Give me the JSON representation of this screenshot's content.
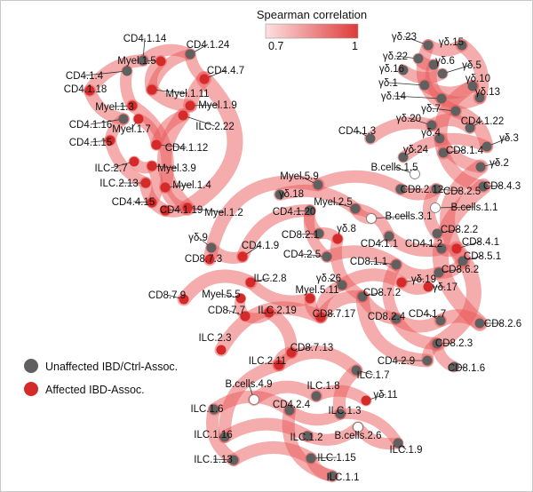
{
  "legend": {
    "correlation_title": "Spearman correlation",
    "scale_min": "0.7",
    "scale_max": "1",
    "unaffected_label": "Unaffected IBD/Ctrl-Assoc.",
    "affected_label": "Affected IBD-Assoc."
  },
  "colors": {
    "edge": "#ea5a5a",
    "unaffected_node": "#606060",
    "affected_node": "#d42a2a",
    "white_node": "#ffffff"
  },
  "nodes": [
    {
      "id": "CD4.1.14",
      "type": "unaffected"
    },
    {
      "id": "CD4.1.24",
      "type": "unaffected"
    },
    {
      "id": "Myel.1.5",
      "type": "affected"
    },
    {
      "id": "CD4.4.7",
      "type": "affected"
    },
    {
      "id": "CD4.1.4",
      "type": "unaffected"
    },
    {
      "id": "CD4.1.18",
      "type": "affected"
    },
    {
      "id": "Myel.1.11",
      "type": "affected"
    },
    {
      "id": "Myel.1.9",
      "type": "affected"
    },
    {
      "id": "Myel.1.3",
      "type": "affected"
    },
    {
      "id": "ILC.2.22",
      "type": "affected"
    },
    {
      "id": "CD4.1.16",
      "type": "unaffected"
    },
    {
      "id": "Myel.1.7",
      "type": "affected"
    },
    {
      "id": "CD4.1.12",
      "type": "affected"
    },
    {
      "id": "CD4.1.15",
      "type": "affected"
    },
    {
      "id": "ILC.2.7",
      "type": "affected"
    },
    {
      "id": "Myel.3.9",
      "type": "affected"
    },
    {
      "id": "ILC.2.13",
      "type": "affected"
    },
    {
      "id": "Myel.1.4",
      "type": "affected"
    },
    {
      "id": "CD4.4.15",
      "type": "affected"
    },
    {
      "id": "CD4.1.19",
      "type": "affected"
    },
    {
      "id": "Myel.1.2",
      "type": "affected"
    },
    {
      "id": "γδ.23",
      "type": "unaffected"
    },
    {
      "id": "γδ.15",
      "type": "unaffected"
    },
    {
      "id": "γδ.22",
      "type": "unaffected"
    },
    {
      "id": "γδ.6",
      "type": "unaffected"
    },
    {
      "id": "γδ.16",
      "type": "unaffected"
    },
    {
      "id": "γδ.5",
      "type": "unaffected"
    },
    {
      "id": "γδ.1",
      "type": "unaffected"
    },
    {
      "id": "γδ.10",
      "type": "unaffected"
    },
    {
      "id": "γδ.14",
      "type": "unaffected"
    },
    {
      "id": "γδ.13",
      "type": "unaffected"
    },
    {
      "id": "γδ.7",
      "type": "unaffected"
    },
    {
      "id": "γδ.20",
      "type": "unaffected"
    },
    {
      "id": "CD4.1.22",
      "type": "unaffected"
    },
    {
      "id": "CD4.1.3",
      "type": "unaffected"
    },
    {
      "id": "γδ.4",
      "type": "unaffected"
    },
    {
      "id": "γδ.3",
      "type": "unaffected"
    },
    {
      "id": "CD8.1.4",
      "type": "unaffected"
    },
    {
      "id": "γδ.24",
      "type": "unaffected"
    },
    {
      "id": "γδ.2",
      "type": "unaffected"
    },
    {
      "id": "B.cells.1.5",
      "type": "white"
    },
    {
      "id": "CD8.4.3",
      "type": "unaffected"
    },
    {
      "id": "Myel.5.9",
      "type": "unaffected"
    },
    {
      "id": "CD8.2.12",
      "type": "unaffected"
    },
    {
      "id": "CD8.2.5",
      "type": "unaffected"
    },
    {
      "id": "γδ.18",
      "type": "unaffected"
    },
    {
      "id": "Myel.2.5",
      "type": "unaffected"
    },
    {
      "id": "B.cells.1.1",
      "type": "white"
    },
    {
      "id": "CD4.1.20",
      "type": "unaffected"
    },
    {
      "id": "B.cells.3.1",
      "type": "white"
    },
    {
      "id": "CD8.2.1",
      "type": "unaffected"
    },
    {
      "id": "γδ.8",
      "type": "affected"
    },
    {
      "id": "CD8.2.2",
      "type": "unaffected"
    },
    {
      "id": "γδ.9",
      "type": "unaffected"
    },
    {
      "id": "CD4.1.1",
      "type": "unaffected"
    },
    {
      "id": "CD4.1.2",
      "type": "unaffected"
    },
    {
      "id": "CD8.4.1",
      "type": "affected"
    },
    {
      "id": "CD4.1.9",
      "type": "affected"
    },
    {
      "id": "CD4.2.5",
      "type": "unaffected"
    },
    {
      "id": "CD8.5.1",
      "type": "unaffected"
    },
    {
      "id": "CD8.7.3",
      "type": "affected"
    },
    {
      "id": "CD8.1.1",
      "type": "unaffected"
    },
    {
      "id": "CD8.6.2",
      "type": "unaffected"
    },
    {
      "id": "ILC.2.8",
      "type": "affected"
    },
    {
      "id": "γδ.26",
      "type": "unaffected"
    },
    {
      "id": "γδ.19",
      "type": "affected"
    },
    {
      "id": "CD8.7.9",
      "type": "affected"
    },
    {
      "id": "Myel.5.5",
      "type": "affected"
    },
    {
      "id": "Myel.5.11",
      "type": "affected"
    },
    {
      "id": "CD8.7.2",
      "type": "unaffected"
    },
    {
      "id": "γδ.17",
      "type": "affected"
    },
    {
      "id": "CD8.7.7",
      "type": "affected"
    },
    {
      "id": "ILC.2.19",
      "type": "affected"
    },
    {
      "id": "CD8.7.17",
      "type": "affected"
    },
    {
      "id": "CD8.2.4",
      "type": "unaffected"
    },
    {
      "id": "CD4.1.7",
      "type": "unaffected"
    },
    {
      "id": "CD8.2.6",
      "type": "unaffected"
    },
    {
      "id": "ILC.2.3",
      "type": "affected"
    },
    {
      "id": "CD8.7.13",
      "type": "affected"
    },
    {
      "id": "CD8.2.3",
      "type": "unaffected"
    },
    {
      "id": "ILC.2.11",
      "type": "affected"
    },
    {
      "id": "CD4.2.9",
      "type": "unaffected"
    },
    {
      "id": "CD8.1.6",
      "type": "unaffected"
    },
    {
      "id": "ILC.1.7",
      "type": "unaffected"
    },
    {
      "id": "B.cells.4.9",
      "type": "white"
    },
    {
      "id": "ILC.1.8",
      "type": "unaffected"
    },
    {
      "id": "γδ.11",
      "type": "affected"
    },
    {
      "id": "ILC.1.6",
      "type": "unaffected"
    },
    {
      "id": "CD4.2.4",
      "type": "unaffected"
    },
    {
      "id": "ILC.1.3",
      "type": "unaffected"
    },
    {
      "id": "ILC.1.16",
      "type": "unaffected"
    },
    {
      "id": "B.cells.2.6",
      "type": "white"
    },
    {
      "id": "ILC.1.2",
      "type": "unaffected"
    },
    {
      "id": "ILC.1.9",
      "type": "unaffected"
    },
    {
      "id": "ILC.1.13",
      "type": "unaffected"
    },
    {
      "id": "ILC.1.15",
      "type": "unaffected"
    },
    {
      "id": "ILC.1.1",
      "type": "unaffected"
    }
  ]
}
